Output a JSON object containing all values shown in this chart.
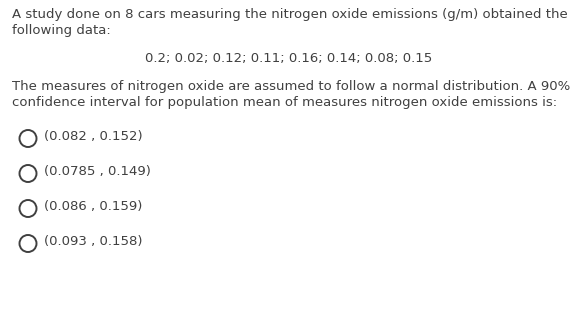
{
  "background_color": "#ffffff",
  "text_color": "#404040",
  "intro_line1": "A study done on 8 cars measuring the nitrogen oxide emissions (g/m) obtained the",
  "intro_line2": "following data:",
  "data_line": "0.2; 0.02; 0.12; 0.11; 0.16; 0.14; 0.08; 0.15",
  "body_line1": "The measures of nitrogen oxide are assumed to follow a normal distribution. A 90%",
  "body_line2": "confidence interval for population mean of measures nitrogen oxide emissions is:",
  "options": [
    "(0.082 , 0.152)",
    "(0.0785 , 0.149)",
    "(0.086 , 0.159)",
    "(0.093 , 0.158)"
  ],
  "font_size": 9.5,
  "fig_width": 5.79,
  "fig_height": 3.09,
  "dpi": 100
}
